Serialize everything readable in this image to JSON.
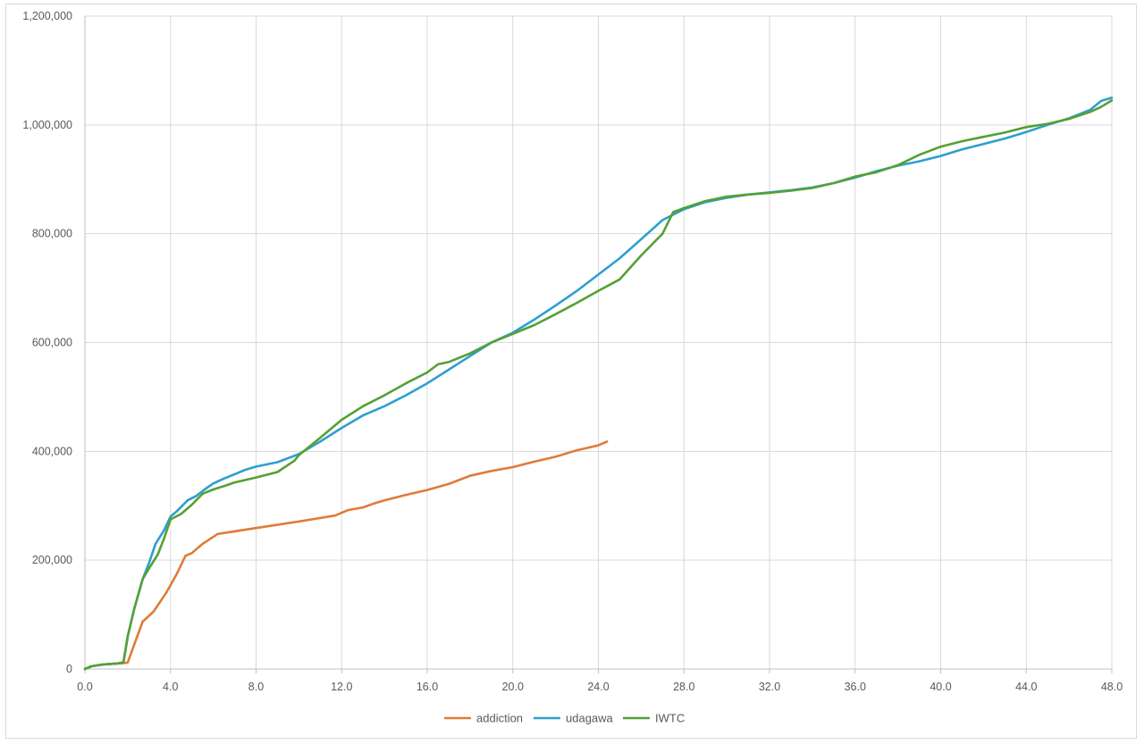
{
  "chart_data": {
    "type": "line",
    "title": "",
    "xlabel": "",
    "ylabel": "",
    "xlim": [
      0,
      48
    ],
    "ylim": [
      0,
      1200000
    ],
    "x_ticks": [
      "0.0",
      "4.0",
      "8.0",
      "12.0",
      "16.0",
      "20.0",
      "24.0",
      "28.0",
      "32.0",
      "36.0",
      "40.0",
      "44.0",
      "48.0"
    ],
    "y_ticks": [
      "0",
      "200,000",
      "400,000",
      "600,000",
      "800,000",
      "1,000,000",
      "1,200,000"
    ],
    "grid": true,
    "legend_position": "bottom",
    "series": [
      {
        "name": "addiction",
        "color": "#e07b39",
        "points": [
          [
            0,
            0
          ],
          [
            0.3,
            5000
          ],
          [
            0.8,
            8000
          ],
          [
            1.5,
            10000
          ],
          [
            1.9,
            11000
          ],
          [
            2.0,
            12000
          ],
          [
            2.7,
            87000
          ],
          [
            3.2,
            105000
          ],
          [
            3.8,
            140000
          ],
          [
            4.3,
            175000
          ],
          [
            4.7,
            208000
          ],
          [
            5.0,
            213000
          ],
          [
            5.5,
            230000
          ],
          [
            6.2,
            248000
          ],
          [
            8.0,
            259000
          ],
          [
            10.0,
            271000
          ],
          [
            11.7,
            282000
          ],
          [
            12.3,
            292000
          ],
          [
            13.0,
            297000
          ],
          [
            13.5,
            304000
          ],
          [
            14.0,
            310000
          ],
          [
            15.0,
            320000
          ],
          [
            16.0,
            329000
          ],
          [
            17.0,
            340000
          ],
          [
            18.0,
            355000
          ],
          [
            19.0,
            364000
          ],
          [
            20.0,
            371000
          ],
          [
            21.0,
            381000
          ],
          [
            22.0,
            390000
          ],
          [
            23.0,
            402000
          ],
          [
            24.0,
            411000
          ],
          [
            24.4,
            418000
          ]
        ]
      },
      {
        "name": "udagawa",
        "color": "#2e9fce",
        "points": [
          [
            0,
            0
          ],
          [
            0.3,
            5000
          ],
          [
            0.8,
            8000
          ],
          [
            1.5,
            10000
          ],
          [
            1.8,
            12000
          ],
          [
            2.0,
            60000
          ],
          [
            2.3,
            110000
          ],
          [
            2.7,
            165000
          ],
          [
            3.0,
            195000
          ],
          [
            3.3,
            230000
          ],
          [
            3.7,
            255000
          ],
          [
            4.0,
            280000
          ],
          [
            4.3,
            290000
          ],
          [
            4.8,
            310000
          ],
          [
            5.2,
            318000
          ],
          [
            5.6,
            330000
          ],
          [
            6.0,
            341000
          ],
          [
            6.5,
            350000
          ],
          [
            7.0,
            358000
          ],
          [
            7.5,
            366000
          ],
          [
            8.0,
            372000
          ],
          [
            9.0,
            380000
          ],
          [
            10.0,
            395000
          ],
          [
            11.0,
            418000
          ],
          [
            12.0,
            443000
          ],
          [
            13.0,
            466000
          ],
          [
            14.0,
            483000
          ],
          [
            15.0,
            503000
          ],
          [
            16.0,
            525000
          ],
          [
            17.0,
            550000
          ],
          [
            18.0,
            575000
          ],
          [
            19.0,
            600000
          ],
          [
            20.0,
            618000
          ],
          [
            21.0,
            642000
          ],
          [
            22.0,
            668000
          ],
          [
            23.0,
            695000
          ],
          [
            24.0,
            725000
          ],
          [
            25.0,
            755000
          ],
          [
            26.0,
            790000
          ],
          [
            27.0,
            825000
          ],
          [
            28.0,
            845000
          ],
          [
            29.0,
            858000
          ],
          [
            30.0,
            866000
          ],
          [
            31.0,
            872000
          ],
          [
            32.0,
            876000
          ],
          [
            33.0,
            880000
          ],
          [
            34.0,
            885000
          ],
          [
            35.0,
            893000
          ],
          [
            36.0,
            903000
          ],
          [
            37.0,
            915000
          ],
          [
            38.0,
            925000
          ],
          [
            39.0,
            933000
          ],
          [
            40.0,
            943000
          ],
          [
            41.0,
            955000
          ],
          [
            42.0,
            965000
          ],
          [
            43.0,
            975000
          ],
          [
            44.0,
            987000
          ],
          [
            45.0,
            1000000
          ],
          [
            46.0,
            1012000
          ],
          [
            47.0,
            1028000
          ],
          [
            47.5,
            1044000
          ],
          [
            48.0,
            1050000
          ]
        ]
      },
      {
        "name": "IWTC",
        "color": "#55a034",
        "points": [
          [
            0,
            0
          ],
          [
            0.3,
            5000
          ],
          [
            0.8,
            8000
          ],
          [
            1.5,
            10000
          ],
          [
            1.8,
            12000
          ],
          [
            2.0,
            60000
          ],
          [
            2.3,
            110000
          ],
          [
            2.7,
            165000
          ],
          [
            3.0,
            185000
          ],
          [
            3.4,
            210000
          ],
          [
            3.7,
            240000
          ],
          [
            4.0,
            275000
          ],
          [
            4.5,
            285000
          ],
          [
            5.0,
            302000
          ],
          [
            5.5,
            322000
          ],
          [
            6.0,
            330000
          ],
          [
            6.5,
            336000
          ],
          [
            7.0,
            343000
          ],
          [
            8.0,
            352000
          ],
          [
            9.0,
            362000
          ],
          [
            9.8,
            383000
          ],
          [
            10.0,
            393000
          ],
          [
            11.0,
            425000
          ],
          [
            12.0,
            458000
          ],
          [
            13.0,
            483000
          ],
          [
            14.0,
            503000
          ],
          [
            15.0,
            525000
          ],
          [
            16.0,
            545000
          ],
          [
            16.5,
            560000
          ],
          [
            17.0,
            564000
          ],
          [
            18.0,
            580000
          ],
          [
            19.0,
            600000
          ],
          [
            20.0,
            616000
          ],
          [
            21.0,
            632000
          ],
          [
            22.0,
            652000
          ],
          [
            23.0,
            673000
          ],
          [
            24.0,
            695000
          ],
          [
            25.0,
            716000
          ],
          [
            26.0,
            760000
          ],
          [
            27.0,
            800000
          ],
          [
            27.5,
            840000
          ],
          [
            28.0,
            847000
          ],
          [
            29.0,
            860000
          ],
          [
            30.0,
            868000
          ],
          [
            31.0,
            872000
          ],
          [
            32.0,
            875000
          ],
          [
            33.0,
            879000
          ],
          [
            34.0,
            884000
          ],
          [
            35.0,
            893000
          ],
          [
            36.0,
            905000
          ],
          [
            37.0,
            913000
          ],
          [
            38.0,
            926000
          ],
          [
            39.0,
            945000
          ],
          [
            40.0,
            960000
          ],
          [
            41.0,
            970000
          ],
          [
            42.0,
            978000
          ],
          [
            43.0,
            986000
          ],
          [
            44.0,
            996000
          ],
          [
            45.0,
            1002000
          ],
          [
            46.0,
            1011000
          ],
          [
            47.0,
            1024000
          ],
          [
            47.5,
            1033000
          ],
          [
            48.0,
            1045000
          ]
        ]
      }
    ]
  }
}
